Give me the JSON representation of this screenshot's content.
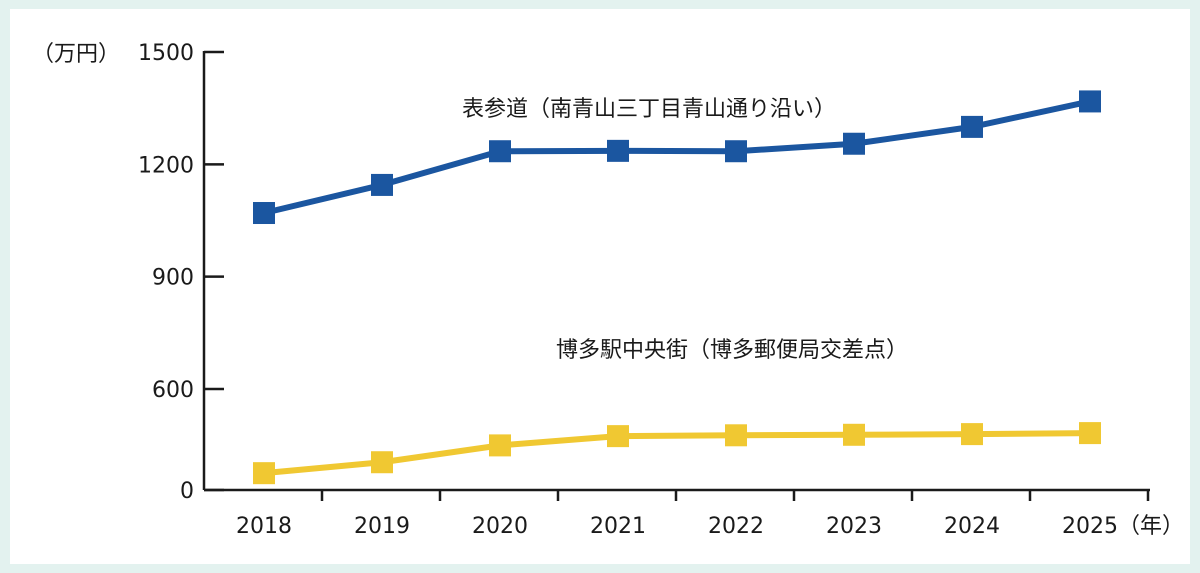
{
  "chart_data": {
    "type": "line",
    "categories": [
      "2018",
      "2019",
      "2020",
      "2021",
      "2022",
      "2023",
      "2024",
      "2025"
    ],
    "series": [
      {
        "name": "表参道（南青山三丁目青山通り沿い）",
        "color": "#1b56a0",
        "values": [
          1070,
          1145,
          1235,
          1236,
          1235,
          1255,
          1300,
          1368
        ]
      },
      {
        "name": "博多駅中央街（博多郵便局交差点）",
        "color": "#f0c832",
        "values": [
          100,
          165,
          265,
          320,
          325,
          328,
          332,
          338
        ]
      }
    ],
    "y_unit_label": "（万円）",
    "x_unit_label": "（年）",
    "yticks": [
      "0",
      "600",
      "900",
      "1200",
      "1500"
    ],
    "ylim": [
      0,
      1500
    ],
    "y_axis_break": "0〜600 compressed (lower segment)",
    "grid": false
  }
}
